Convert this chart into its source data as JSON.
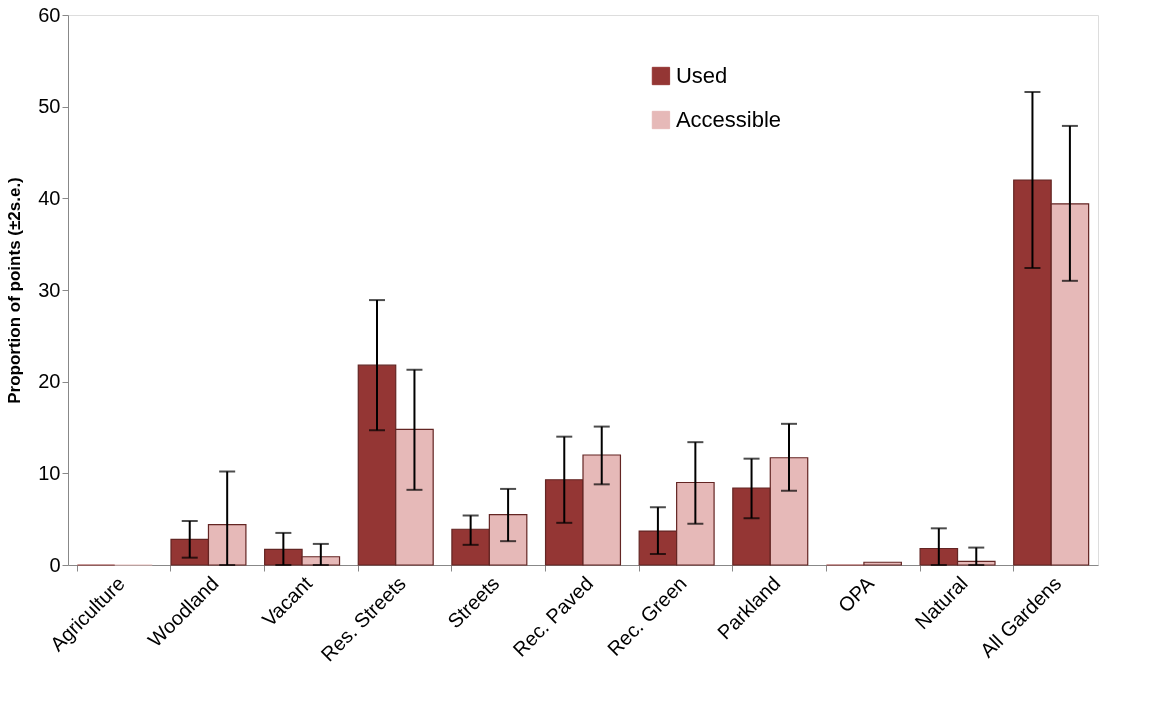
{
  "chart_data": {
    "type": "bar",
    "ylabel": "Proportion of points (±2s.e.)",
    "categories": [
      "Agriculture",
      "Woodland",
      "Vacant",
      "Res. Streets",
      "Streets",
      "Rec. Paved",
      "Rec. Green",
      "Parkland",
      "OPA",
      "Natural",
      "All Gardens"
    ],
    "series": [
      {
        "name": "Used",
        "color": "#943634",
        "values": [
          0,
          2.8,
          1.7,
          21.8,
          3.9,
          9.3,
          3.7,
          8.4,
          0,
          1.8,
          42.0
        ],
        "errors": [
          null,
          [
            0.8,
            4.8
          ],
          [
            0,
            3.5
          ],
          [
            14.7,
            28.9
          ],
          [
            2.2,
            5.4
          ],
          [
            4.6,
            14.0
          ],
          [
            1.2,
            6.3
          ],
          [
            5.1,
            11.6
          ],
          null,
          [
            0,
            4.0
          ],
          [
            32.4,
            51.6
          ]
        ]
      },
      {
        "name": "Accessible",
        "color": "#e6b9b8",
        "values": [
          0,
          4.4,
          0.9,
          14.8,
          5.5,
          12.0,
          9.0,
          11.7,
          0.3,
          0.4,
          39.4
        ],
        "errors": [
          null,
          [
            0,
            10.2
          ],
          [
            0,
            2.3
          ],
          [
            8.2,
            21.3
          ],
          [
            2.6,
            8.3
          ],
          [
            8.8,
            15.1
          ],
          [
            4.5,
            13.4
          ],
          [
            8.1,
            15.4
          ],
          null,
          [
            0,
            1.9
          ],
          [
            31.0,
            47.9
          ]
        ]
      }
    ],
    "ylim": [
      0,
      60
    ],
    "yticks": [
      0,
      10,
      20,
      30,
      40,
      50,
      60
    ],
    "grid": false,
    "legend": "top right"
  }
}
